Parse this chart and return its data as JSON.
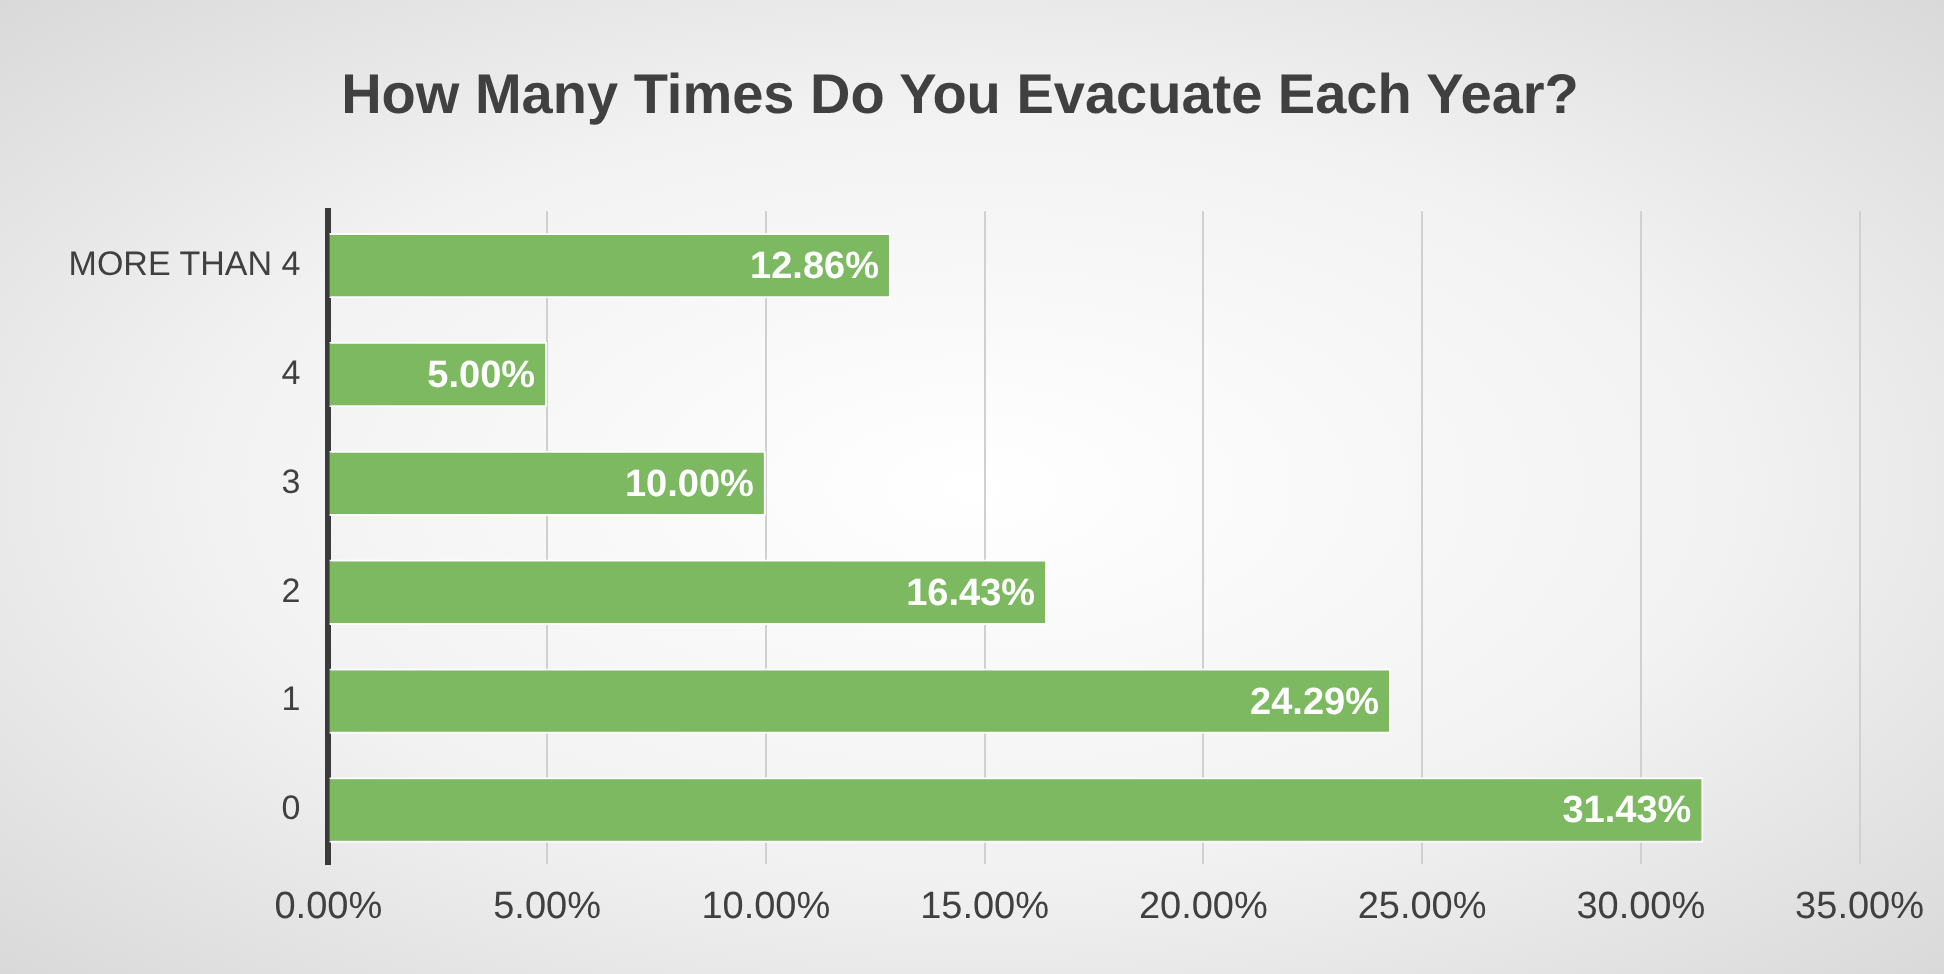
{
  "chart_data": {
    "type": "bar",
    "orientation": "horizontal",
    "title": "How Many Times Do You Evacuate Each Year?",
    "categories": [
      "MORE THAN 4",
      "4",
      "3",
      "2",
      "1",
      "0"
    ],
    "values": [
      12.86,
      5.0,
      10.0,
      16.43,
      24.29,
      31.43
    ],
    "value_labels": [
      "12.86%",
      "5.00%",
      "10.00%",
      "16.43%",
      "24.29%",
      "31.43%"
    ],
    "color": "#7cb961",
    "xlim": [
      0,
      35
    ],
    "xticks": [
      {
        "value": 0,
        "label": "0.00%"
      },
      {
        "value": 5,
        "label": "5.00%"
      },
      {
        "value": 10,
        "label": "10.00%"
      },
      {
        "value": 15,
        "label": "15.00%"
      },
      {
        "value": 20,
        "label": "20.00%"
      },
      {
        "value": 25,
        "label": "25.00%"
      },
      {
        "value": 30,
        "label": "30.00%"
      },
      {
        "value": 35,
        "label": "35.00%"
      }
    ],
    "grid": "x",
    "legend": false
  }
}
